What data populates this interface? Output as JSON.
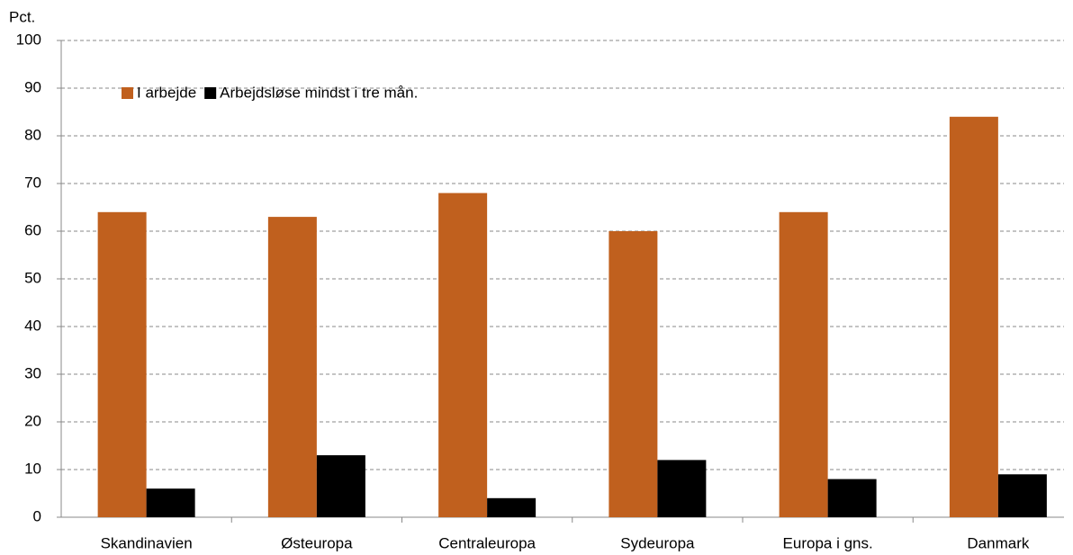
{
  "chart_data": {
    "type": "bar",
    "y_label": "Pct.",
    "categories": [
      "Skandinavien",
      "Østeuropa",
      "Centraleuropa",
      "Sydeuropa",
      "Europa i gns.",
      "Danmark"
    ],
    "series": [
      {
        "name": "I arbejde",
        "color": "#c0601e",
        "values": [
          64,
          63,
          68,
          60,
          64,
          84
        ]
      },
      {
        "name": "Arbejdsløse mindst i tre mån.",
        "color": "#000000",
        "values": [
          6,
          13,
          4,
          12,
          8,
          9
        ]
      }
    ],
    "ylim": [
      0,
      100
    ],
    "yticks": [
      0,
      10,
      20,
      30,
      40,
      50,
      60,
      70,
      80,
      90,
      100
    ],
    "grid": true
  }
}
